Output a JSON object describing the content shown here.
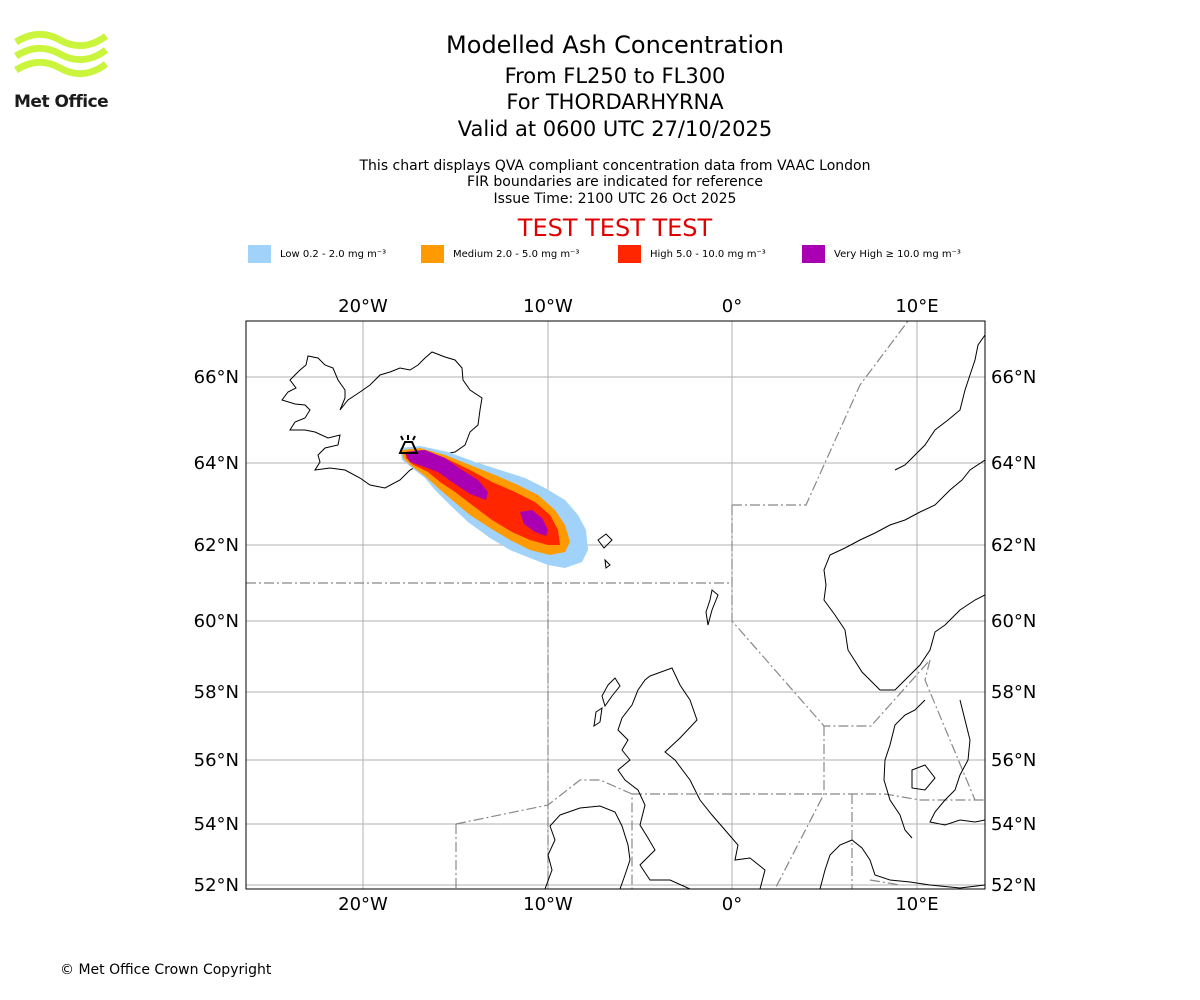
{
  "header": {
    "logo_text": "Met Office",
    "title": "Modelled Ash Concentration",
    "level_range": "From FL250 to FL300",
    "volcano_line": "For THORDARHYRNA",
    "valid_time": "Valid at 0600 UTC 27/10/2025",
    "note_line1": "This chart displays QVA compliant concentration data from VAAC London",
    "note_line2": "FIR boundaries are indicated for reference",
    "issue_time": "Issue Time: 2100 UTC 26 Oct 2025",
    "test_banner": "TEST TEST TEST"
  },
  "legend": {
    "items": [
      {
        "label": "Low 0.2 - 2.0 mg m⁻³",
        "color": "#a0d2fa"
      },
      {
        "label": "Medium 2.0 - 5.0 mg m⁻³",
        "color": "#ff9a00"
      },
      {
        "label": "High 5.0 - 10.0 mg m⁻³",
        "color": "#ff2600"
      },
      {
        "label": "Very High  ≥  10.0 mg m⁻³",
        "color": "#aa00b4"
      }
    ]
  },
  "map": {
    "lon_labels": [
      "20°W",
      "10°W",
      "0°",
      "10°E"
    ],
    "lat_labels": [
      "66°N",
      "64°N",
      "62°N",
      "60°N",
      "58°N",
      "56°N",
      "54°N",
      "52°N"
    ],
    "volcano_icon": "volcano-icon"
  },
  "footer": {
    "copyright": "© Met Office Crown Copyright"
  }
}
